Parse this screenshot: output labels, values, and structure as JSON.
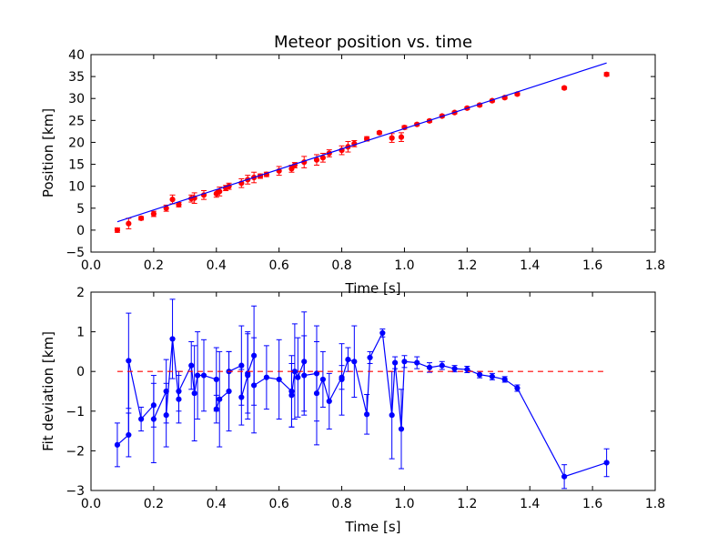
{
  "chart_data": [
    {
      "type": "scatter",
      "title": "Meteor position vs. time",
      "xlabel": "Time [s]",
      "ylabel": "Position [km]",
      "xlim": [
        0.0,
        1.8
      ],
      "ylim": [
        -5,
        40
      ],
      "x_ticks": [
        "0.0",
        "0.2",
        "0.4",
        "0.6",
        "0.8",
        "1.0",
        "1.2",
        "1.4",
        "1.6",
        "1.8"
      ],
      "y_ticks": [
        "−5",
        "0",
        "5",
        "10",
        "15",
        "20",
        "25",
        "30",
        "35",
        "40"
      ],
      "x_tick_values": [
        0.0,
        0.2,
        0.4,
        0.6,
        0.8,
        1.0,
        1.2,
        1.4,
        1.6,
        1.8
      ],
      "y_tick_values": [
        -5,
        0,
        5,
        10,
        15,
        20,
        25,
        30,
        35,
        40
      ],
      "grid": false,
      "series": [
        {
          "style": "points-with-errorbars",
          "color": "#ff0000",
          "x": [
            0.084,
            0.12,
            0.16,
            0.2,
            0.24,
            0.26,
            0.28,
            0.32,
            0.33,
            0.36,
            0.4,
            0.41,
            0.43,
            0.44,
            0.48,
            0.5,
            0.52,
            0.54,
            0.56,
            0.6,
            0.64,
            0.65,
            0.68,
            0.72,
            0.74,
            0.76,
            0.8,
            0.82,
            0.84,
            0.88,
            0.92,
            0.96,
            0.99,
            1.0,
            1.04,
            1.08,
            1.12,
            1.16,
            1.2,
            1.24,
            1.28,
            1.32,
            1.36,
            1.51,
            1.645
          ],
          "y": [
            0.0,
            1.5,
            2.7,
            3.7,
            5.0,
            7.0,
            5.8,
            7.2,
            7.3,
            8.0,
            8.3,
            8.8,
            9.6,
            10.0,
            10.7,
            11.5,
            12.0,
            12.3,
            12.7,
            13.5,
            14.0,
            14.8,
            15.5,
            16.0,
            16.5,
            17.5,
            18.2,
            19.0,
            19.7,
            20.8,
            22.2,
            21.0,
            21.2,
            23.4,
            24.1,
            24.9,
            26.0,
            26.8,
            27.8,
            28.5,
            29.5,
            30.2,
            31.0,
            32.4,
            35.5
          ],
          "yerr": [
            0.5,
            1.2,
            0.4,
            0.6,
            0.7,
            1.0,
            0.5,
            0.8,
            1.2,
            1.0,
            0.8,
            1.0,
            0.6,
            0.7,
            1.0,
            1.0,
            1.2,
            0.5,
            0.5,
            1.0,
            0.8,
            0.6,
            1.3,
            1.2,
            1.0,
            0.8,
            1.0,
            1.2,
            0.7,
            0.5,
            0.3,
            1.0,
            1.0,
            0.4,
            0.3,
            0.3,
            0.3,
            0.3,
            0.3,
            0.3,
            0.3,
            0.3,
            0.3,
            0.3,
            0.4
          ]
        },
        {
          "style": "line",
          "color": "#0000ff",
          "x": [
            0.084,
            1.645
          ],
          "y": [
            1.9,
            38.1
          ]
        }
      ]
    },
    {
      "type": "line",
      "title": "",
      "xlabel": "Time [s]",
      "ylabel": "Fit deviation [km]",
      "xlim": [
        0.0,
        1.8
      ],
      "ylim": [
        -3,
        2
      ],
      "x_ticks": [
        "0.0",
        "0.2",
        "0.4",
        "0.6",
        "0.8",
        "1.0",
        "1.2",
        "1.4",
        "1.6",
        "1.8"
      ],
      "y_ticks": [
        "−3",
        "−2",
        "−1",
        "0",
        "1",
        "2"
      ],
      "x_tick_values": [
        0.0,
        0.2,
        0.4,
        0.6,
        0.8,
        1.0,
        1.2,
        1.4,
        1.6,
        1.8
      ],
      "y_tick_values": [
        -3,
        -2,
        -1,
        0,
        1,
        2
      ],
      "grid": false,
      "series": [
        {
          "style": "line-points-with-errorbars",
          "color": "#0000ff",
          "x": [
            0.084,
            0.12,
            0.12,
            0.16,
            0.2,
            0.2,
            0.24,
            0.24,
            0.26,
            0.28,
            0.28,
            0.32,
            0.33,
            0.34,
            0.36,
            0.4,
            0.4,
            0.41,
            0.44,
            0.44,
            0.48,
            0.48,
            0.5,
            0.5,
            0.52,
            0.52,
            0.56,
            0.6,
            0.64,
            0.64,
            0.65,
            0.66,
            0.68,
            0.68,
            0.72,
            0.72,
            0.74,
            0.76,
            0.8,
            0.8,
            0.82,
            0.84,
            0.88,
            0.89,
            0.93,
            0.96,
            0.97,
            0.99,
            1.0,
            1.04,
            1.08,
            1.12,
            1.16,
            1.2,
            1.24,
            1.28,
            1.32,
            1.36,
            1.51,
            1.645
          ],
          "y": [
            -1.85,
            -1.6,
            0.27,
            -1.2,
            -0.85,
            -1.2,
            -0.5,
            -1.1,
            0.82,
            -0.7,
            -0.5,
            0.15,
            -0.55,
            -0.1,
            -0.1,
            -0.2,
            -0.95,
            -0.7,
            -0.5,
            0.0,
            0.15,
            -0.65,
            -0.1,
            -0.05,
            0.4,
            -0.35,
            -0.15,
            -0.2,
            -0.5,
            -0.6,
            0.0,
            -0.15,
            0.25,
            -0.1,
            -0.05,
            -0.55,
            -0.2,
            -0.75,
            -0.15,
            -0.2,
            0.3,
            0.25,
            -1.08,
            0.35,
            0.97,
            -1.1,
            0.22,
            -1.45,
            0.25,
            0.22,
            0.1,
            0.15,
            0.07,
            0.05,
            -0.08,
            -0.13,
            -0.2,
            -0.42,
            -2.65,
            -2.3
          ],
          "yerr": [
            0.55,
            0.55,
            1.2,
            0.3,
            0.55,
            1.1,
            0.8,
            0.8,
            1.0,
            0.6,
            0.5,
            0.6,
            1.2,
            1.1,
            0.9,
            0.8,
            0.35,
            1.2,
            1.0,
            0.5,
            1.0,
            0.7,
            1.1,
            1.0,
            1.25,
            1.2,
            0.8,
            1.0,
            0.9,
            0.8,
            1.2,
            1.0,
            1.25,
            1.0,
            1.2,
            1.3,
            0.7,
            0.7,
            0.3,
            0.9,
            0.3,
            0.9,
            0.5,
            0.15,
            0.1,
            1.1,
            0.15,
            1.0,
            0.15,
            0.15,
            0.12,
            0.1,
            0.08,
            0.08,
            0.08,
            0.08,
            0.07,
            0.08,
            0.3,
            0.35
          ]
        },
        {
          "style": "dashed-line",
          "color": "#ff0000",
          "x": [
            0.084,
            1.645
          ],
          "y": [
            0,
            0
          ]
        }
      ]
    }
  ]
}
